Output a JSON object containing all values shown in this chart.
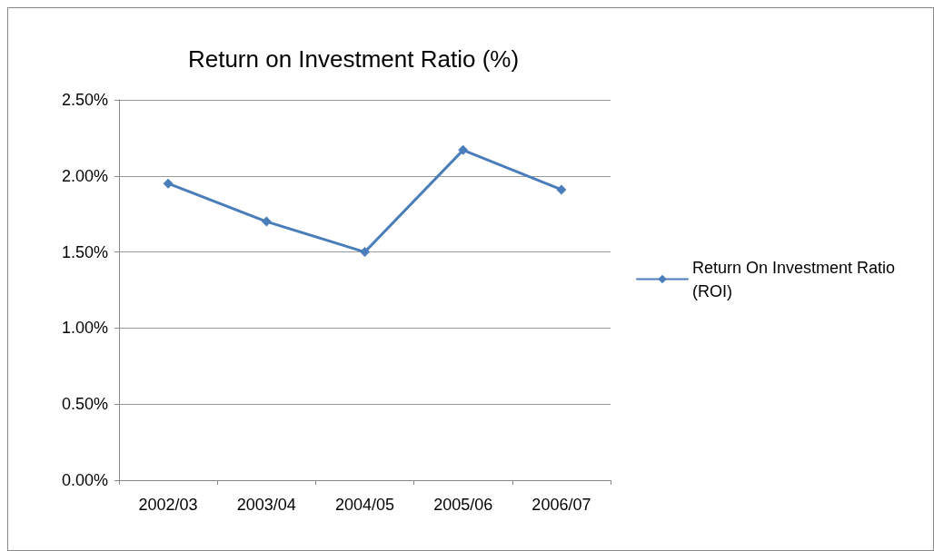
{
  "chart_data": {
    "type": "line",
    "title": "Return on Investment Ratio (%)",
    "categories": [
      "2002/03",
      "2003/04",
      "2004/05",
      "2005/06",
      "2006/07"
    ],
    "series": [
      {
        "name": "Return On Investment Ratio (ROI)",
        "color": "#4a7ebb",
        "values": [
          1.95,
          1.7,
          1.5,
          2.17,
          1.91
        ]
      }
    ],
    "ylim": [
      0,
      2.5
    ],
    "yticks": [
      {
        "value": 0,
        "label": "0.00%"
      },
      {
        "value": 0.5,
        "label": "0.50%"
      },
      {
        "value": 1,
        "label": "1.00%"
      },
      {
        "value": 1.5,
        "label": "1.50%"
      },
      {
        "value": 2,
        "label": "2.00%"
      },
      {
        "value": 2.5,
        "label": "2.50%"
      }
    ],
    "grid": "y",
    "legend": "right",
    "marker": "diamond",
    "line_style": "solid"
  }
}
